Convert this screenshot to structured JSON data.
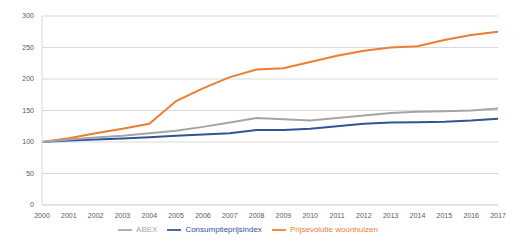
{
  "chart_data": {
    "type": "line",
    "categories": [
      "2000",
      "2001",
      "2002",
      "2003",
      "2004",
      "2005",
      "2006",
      "2007",
      "2008",
      "2009",
      "2010",
      "2011",
      "2012",
      "2013",
      "2014",
      "2015",
      "2016",
      "2017"
    ],
    "series": [
      {
        "name": "Consumptieprijsindex",
        "color": "#2e5597",
        "values": [
          100,
          102.5,
          104,
          105.5,
          107.5,
          110,
          112,
          114,
          119,
          119,
          121,
          125,
          129,
          131,
          131.5,
          132,
          134,
          137
        ]
      },
      {
        "name": "Prijsevolutie woonhuizen",
        "color": "#ed7d31",
        "values": [
          100,
          106,
          114,
          121,
          129,
          165,
          185,
          203,
          215,
          217,
          227,
          237,
          245,
          250,
          252,
          262,
          270,
          275
        ]
      },
      {
        "name": "ABEX",
        "color": "#a5a5a5",
        "values": [
          100,
          104,
          107,
          110,
          114,
          118,
          124,
          131,
          138,
          136,
          134,
          138,
          142,
          146,
          148,
          149,
          150,
          153
        ]
      }
    ],
    "ylim": [
      0,
      300
    ],
    "yticks": [
      0,
      50,
      100,
      150,
      200,
      250,
      300
    ],
    "grid": true,
    "legend": "bottom"
  }
}
